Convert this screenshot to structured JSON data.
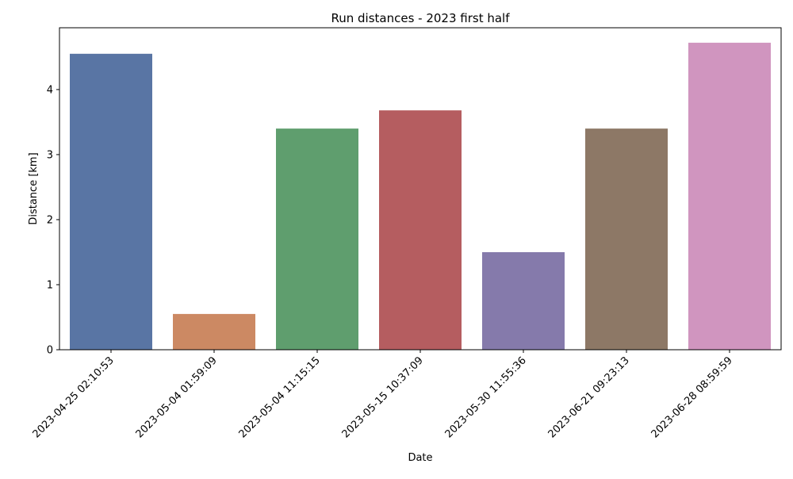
{
  "chart_data": {
    "type": "bar",
    "title": "Run distances - 2023 first half",
    "xlabel": "Date",
    "ylabel": "Distance [km]",
    "categories": [
      "2023-04-25 02:10:53",
      "2023-05-04 01:59:09",
      "2023-05-04 11:15:15",
      "2023-05-15 10:37:09",
      "2023-05-30 11:55:36",
      "2023-06-21 09:23:13",
      "2023-06-28 08:59:59"
    ],
    "values": [
      4.55,
      0.55,
      3.4,
      3.68,
      1.5,
      3.4,
      4.72
    ],
    "colors": [
      "#5975a4",
      "#cc8963",
      "#5f9e6e",
      "#b55d60",
      "#857aab",
      "#8d7866",
      "#d095bf"
    ],
    "ylim": [
      0,
      4.95
    ],
    "yticks": [
      0,
      1,
      2,
      3,
      4
    ],
    "grid": false,
    "legend": "none"
  }
}
